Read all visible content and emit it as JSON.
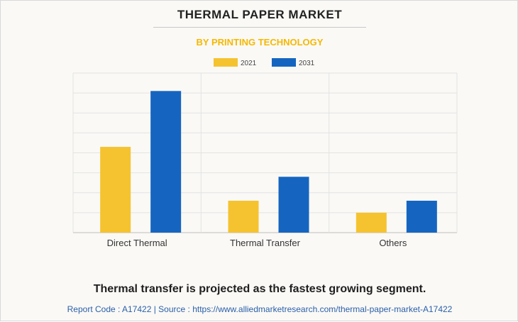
{
  "title": "THERMAL PAPER MARKET",
  "subtitle": "BY PRINTING TECHNOLOGY",
  "chart_data": {
    "type": "bar",
    "categories": [
      "Direct Thermal",
      "Thermal Transfer",
      "Others"
    ],
    "series": [
      {
        "name": "2021",
        "color": "#f5c330",
        "values": [
          4.3,
          1.6,
          1.0
        ]
      },
      {
        "name": "2031",
        "color": "#1565c0",
        "values": [
          7.1,
          2.8,
          1.6
        ]
      }
    ],
    "ylim": [
      0,
      8
    ],
    "grid": true,
    "legend": "top-center",
    "y_tick_labels_shown": false
  },
  "caption": "Thermal transfer is projected as the fastest growing segment.",
  "footer": "Report Code : A17422  |  Source : https://www.alliedmarketresearch.com/thermal-paper-market-A17422"
}
